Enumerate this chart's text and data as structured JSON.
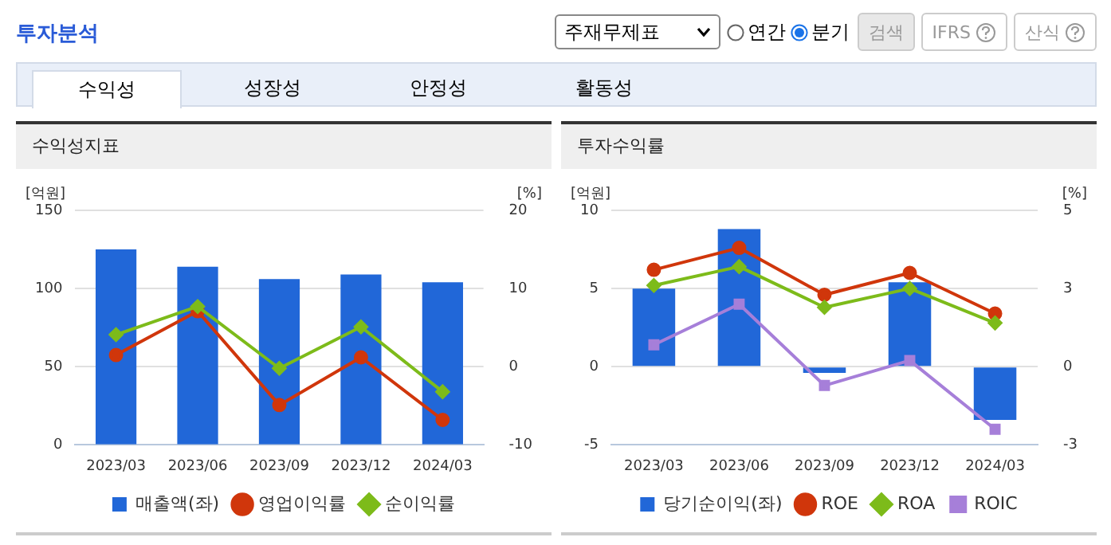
{
  "chart_data": [
    {
      "type": "other",
      "title": "투자분석",
      "annotations": [
        "주재무제표",
        "연간",
        "분기",
        "검색",
        "IFRS",
        "산식",
        "수익성",
        "성장성",
        "안정성",
        "활동성"
      ]
    },
    {
      "type": "bar",
      "title": "수익성지표",
      "ylabel": "[억원]",
      "y2label": "[%]",
      "categories": [
        "2023/03",
        "2023/06",
        "2023/09",
        "2023/12",
        "2024/03"
      ],
      "series": [
        {
          "name": "매출액(좌)",
          "type": "bar",
          "color": "#2167d8",
          "values": [
            125,
            114,
            106,
            109,
            104
          ]
        },
        {
          "name": "영업이익률",
          "type": "line",
          "axis": "y2",
          "marker": "circle",
          "color": "#d0360b",
          "values": [
            1.5,
            7.1,
            -4.9,
            1.2,
            -6.8
          ]
        },
        {
          "name": "순이익률",
          "type": "line",
          "axis": "y2",
          "marker": "diamond",
          "color": "#7dbb1a",
          "values": [
            4.1,
            7.7,
            -0.2,
            5.1,
            -3.2
          ]
        }
      ],
      "ylim": [
        0,
        150
      ],
      "yticks": [
        0,
        50,
        100,
        150
      ],
      "y2lim": [
        -10,
        20
      ],
      "y2ticks": [
        -10,
        0,
        10,
        20
      ],
      "grid": "y",
      "legend": "bottom"
    },
    {
      "type": "bar",
      "title": "투자수익률",
      "ylabel": "[억원]",
      "y2label": "[%]",
      "categories": [
        "2023/03",
        "2023/06",
        "2023/09",
        "2023/12",
        "2024/03"
      ],
      "series": [
        {
          "name": "당기순이익(좌)",
          "type": "bar",
          "color": "#2167d8",
          "values": [
            5.0,
            8.8,
            -0.4,
            5.4,
            -3.4
          ]
        },
        {
          "name": "ROE",
          "type": "line",
          "axis": "y2",
          "marker": "circle",
          "color": "#d0360b",
          "values": [
            3.1,
            3.8,
            2.3,
            3.0,
            1.7
          ]
        },
        {
          "name": "ROA",
          "type": "line",
          "axis": "y2",
          "marker": "diamond",
          "color": "#7dbb1a",
          "values": [
            2.6,
            3.2,
            1.9,
            2.5,
            1.4
          ]
        },
        {
          "name": "ROIC",
          "type": "line",
          "axis": "y2",
          "marker": "square",
          "color": "#a67fd9",
          "values": [
            0.7,
            2.0,
            -0.6,
            0.2,
            -2.0
          ]
        }
      ],
      "ylim": [
        -5,
        10
      ],
      "yticks": [
        -5,
        0,
        5,
        10
      ],
      "y2lim": [
        -2.5,
        5
      ],
      "y2ticks": [
        {
          "value": -2.5,
          "label": "-3"
        },
        0,
        {
          "value": 2.5,
          "label": "3"
        },
        5
      ],
      "grid": "y",
      "legend": "bottom"
    }
  ]
}
